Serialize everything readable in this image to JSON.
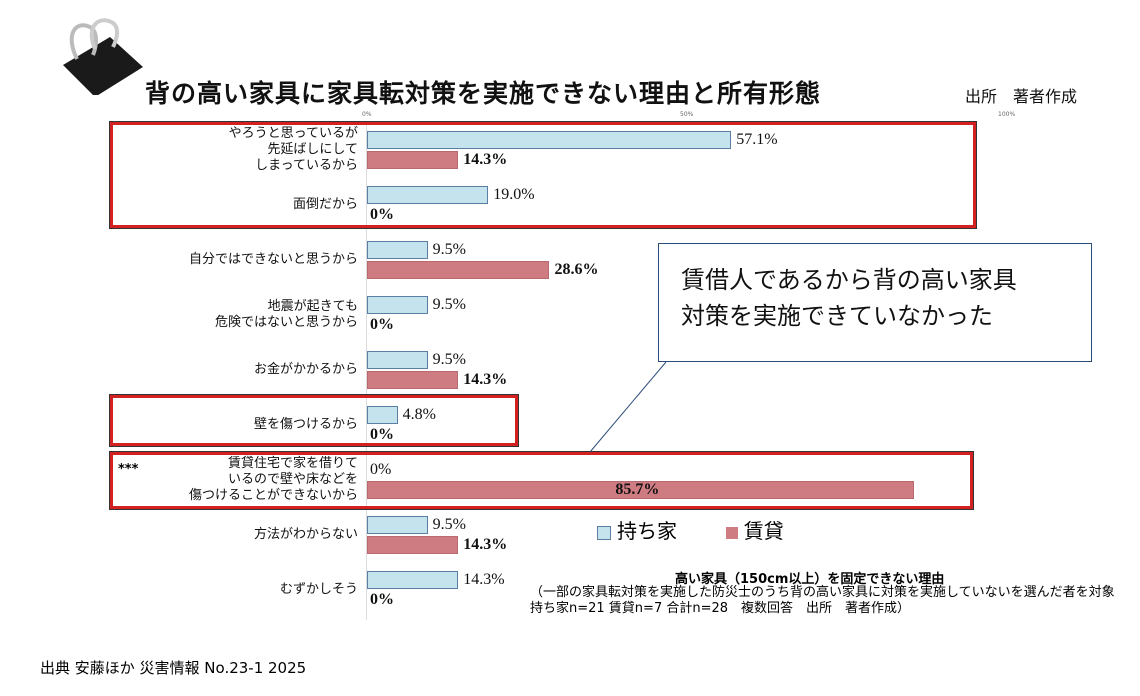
{
  "title": "背の高い家具に家具転対策を実施できない理由と所有形態",
  "source_top": "出所　著者作成",
  "footer": "出典  安藤ほか  災害情報  No.23-1 2025",
  "callout": {
    "line1": "賃借人であるから背の高い家具",
    "line2": "対策を実施できていなかった"
  },
  "annotation_marker": "***",
  "colors": {
    "own": "#c5e3ec",
    "rent": "#cf7b82",
    "highlight_box": "#d32020"
  },
  "icon": "binder-clip-icon",
  "chart_data": {
    "type": "bar",
    "orientation": "horizontal",
    "xlim": [
      0,
      100
    ],
    "x_ticks": [
      "0%",
      "50%",
      "100%"
    ],
    "categories": [
      "やろうと思っているが\n先延ばしにして\nしまっているから",
      "面倒だから",
      "自分ではできないと思うから",
      "地震が起きても\n危険ではないと思うから",
      "お金がかかるから",
      "壁を傷つけるから",
      "賃貸住宅で家を借りて\nいるので壁や床などを\n傷つけることができないから",
      "方法がわからない",
      "むずかしそう"
    ],
    "series": [
      {
        "name": "持ち家",
        "values": [
          57.1,
          19.0,
          9.5,
          9.5,
          9.5,
          4.8,
          0,
          9.5,
          14.3
        ],
        "labels": [
          "57.1%",
          "19.0%",
          "9.5%",
          "9.5%",
          "9.5%",
          "4.8%",
          "0%",
          "9.5%",
          "14.3%"
        ]
      },
      {
        "name": "賃貸",
        "values": [
          14.3,
          0,
          28.6,
          0,
          14.3,
          0,
          85.7,
          14.3,
          0
        ],
        "labels": [
          "14.3%",
          "0%",
          "28.6%",
          "0%",
          "14.3%",
          "0%",
          "85.7%",
          "14.3%",
          "0%"
        ]
      }
    ],
    "caption_title": "高い家具（150cm以上）を固定できない理由",
    "caption_note": "（一部の家具転対策を実施した防災士のうち背の高い家具に対策を実施していないを選んだ者を対象　持ち家n=21  賃貸n=7  合計n=28　複数回答　出所　著者作成）",
    "legend_placement": "bottom-right"
  }
}
